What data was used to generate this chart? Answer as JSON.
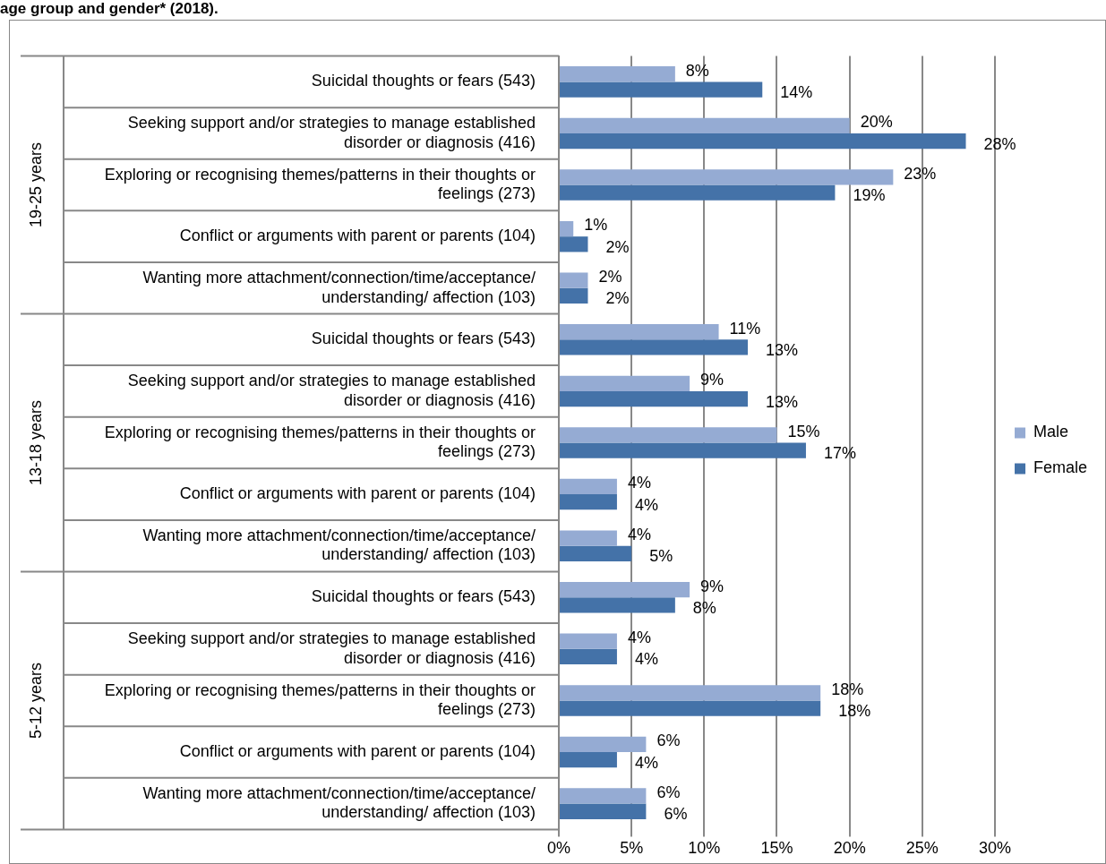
{
  "chart_data": {
    "type": "bar",
    "orientation": "horizontal",
    "title": "age group and gender* (2018).",
    "categories": [
      "Suicidal thoughts or fears (543)",
      "Seeking support and/or strategies to manage established disorder or diagnosis (416)",
      "Exploring or recognising themes/patterns in their thoughts or feelings (273)",
      "Conflict or arguments with parent or parents (104)",
      "Wanting more attachment/connection/time/acceptance/ understanding/ affection (103)",
      "Suicidal thoughts or fears (543)",
      "Seeking support and/or strategies to manage established disorder or diagnosis (416)",
      "Exploring or recognising themes/patterns in their thoughts or feelings (273)",
      "Conflict or arguments with parent or parents (104)",
      "Wanting more attachment/connection/time/acceptance/ understanding/ affection (103)",
      "Suicidal thoughts or fears (543)",
      "Seeking support and/or strategies to manage established disorder or diagnosis (416)",
      "Exploring or recognising themes/patterns in their thoughts or feelings (273)",
      "Conflict or arguments with parent or parents (104)",
      "Wanting more attachment/connection/time/acceptance/ understanding/ affection (103)"
    ],
    "series": [
      {
        "name": "Male",
        "color": "#95abd3",
        "values": [
          8,
          20,
          23,
          1,
          2,
          11,
          9,
          15,
          4,
          4,
          9,
          4,
          18,
          6,
          6
        ],
        "value_labels": [
          "8%",
          "20%",
          "23%",
          "1%",
          "2%",
          "11%",
          "9%",
          "15%",
          "4%",
          "4%",
          "9%",
          "4%",
          "18%",
          "6%",
          "6%"
        ]
      },
      {
        "name": "Female",
        "color": "#4472a8",
        "values": [
          14,
          28,
          19,
          2,
          2,
          13,
          13,
          17,
          4,
          5,
          8,
          4,
          18,
          4,
          6
        ],
        "value_labels": [
          "14%",
          "28%",
          "19%",
          "2%",
          "2%",
          "13%",
          "13%",
          "17%",
          "4%",
          "5%",
          "8%",
          "4%",
          "18%",
          "4%",
          "6%"
        ]
      }
    ],
    "xlim": [
      0,
      30
    ],
    "xticks": [
      {
        "value": 0,
        "label": "0%"
      },
      {
        "value": 5,
        "label": "5%"
      },
      {
        "value": 10,
        "label": "10%"
      },
      {
        "value": 15,
        "label": "15%"
      },
      {
        "value": 20,
        "label": "20%"
      },
      {
        "value": 25,
        "label": "25%"
      },
      {
        "value": 30,
        "label": "30%"
      }
    ],
    "annotations": [
      "19-25 years",
      "13-18 years",
      "5-12 years"
    ],
    "grid": "x",
    "legend": "right"
  }
}
